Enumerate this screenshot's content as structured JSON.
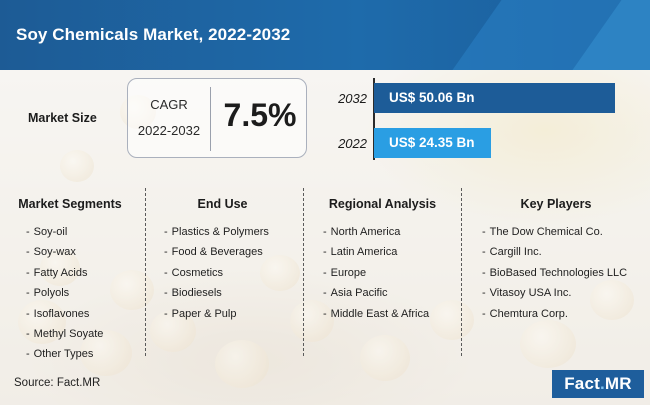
{
  "header": {
    "title": "Soy Chemicals Market, 2022-2032"
  },
  "market_size": {
    "label": "Market Size",
    "cagr_label": "CAGR",
    "cagr_years": "2022-2032",
    "cagr_value": "7.5%"
  },
  "chart_data": {
    "type": "bar",
    "orientation": "horizontal",
    "categories": [
      "2032",
      "2022"
    ],
    "values": [
      50.06,
      24.35
    ],
    "data_labels": [
      "US$ 50.06 Bn",
      "US$ 24.35 Bn"
    ],
    "unit": "US$ Bn",
    "bar_colors": [
      "#1d5c98",
      "#2a9ee3"
    ],
    "xlim": [
      0,
      50.06
    ]
  },
  "columns": [
    {
      "title": "Market Segments",
      "items": [
        "Soy-oil",
        "Soy-wax",
        "Fatty Acids",
        "Polyols",
        "Isoflavones",
        "Methyl Soyate",
        "Other Types"
      ]
    },
    {
      "title": "End Use",
      "items": [
        "Plastics & Polymers",
        "Food & Beverages",
        "Cosmetics",
        "Biodiesels",
        "Paper & Pulp"
      ]
    },
    {
      "title": "Regional Analysis",
      "items": [
        "North America",
        "Latin America",
        "Europe",
        "Asia Pacific",
        "Middle East & Africa"
      ]
    },
    {
      "title": "Key Players",
      "items": [
        "The Dow Chemical Co.",
        "Cargill Inc.",
        "BioBased Technologies LLC",
        "Vitasoy USA Inc.",
        "Chemtura Corp."
      ]
    }
  ],
  "item_prefix": "-",
  "footer": {
    "source": "Source: Fact.MR",
    "logo_main": "Fact",
    "logo_dot": ".",
    "logo_tail": "MR"
  },
  "colors": {
    "header": "#1d5b95",
    "bar_2032": "#1d5c98",
    "bar_2022": "#2a9ee3",
    "logo": "#1e5e9c"
  }
}
